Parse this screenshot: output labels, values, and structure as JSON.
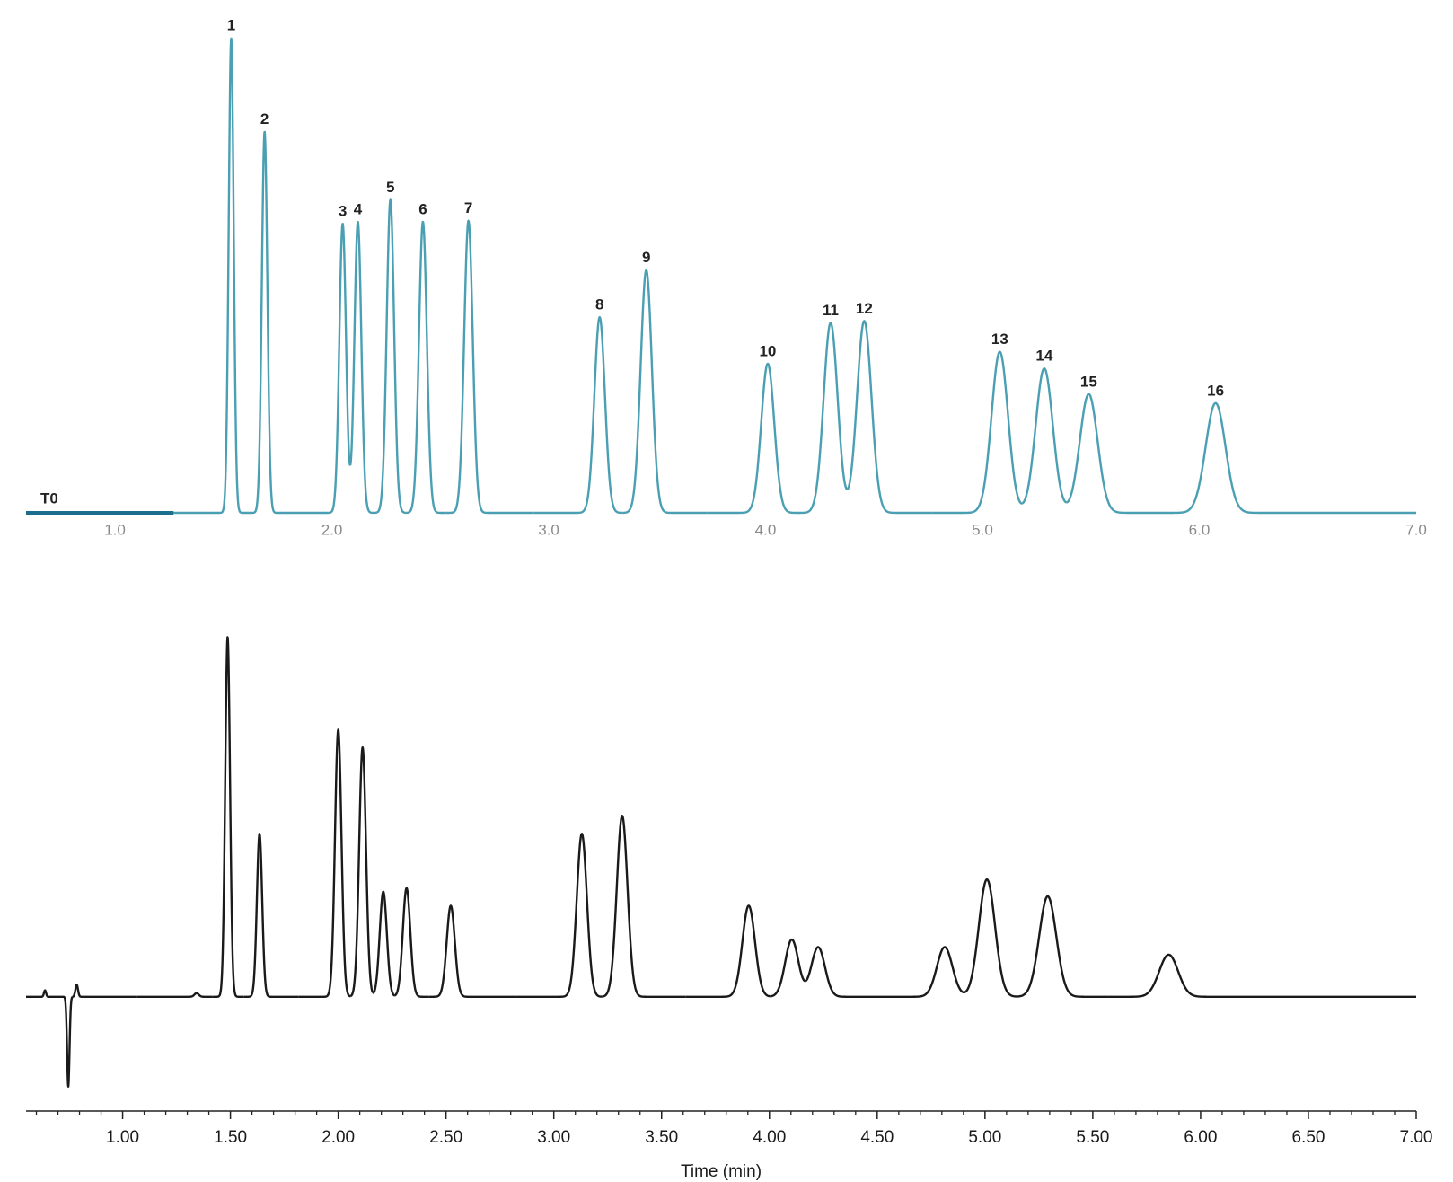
{
  "chart_data": [
    {
      "type": "chromatogram",
      "x": [
        1.536,
        1.69,
        2.05,
        2.12,
        2.27,
        2.42,
        2.63,
        3.235,
        3.45,
        4.01,
        4.3,
        4.455,
        5.08,
        5.285,
        5.49,
        6.075
      ],
      "values": [
        100,
        80.3,
        60.9,
        61.3,
        65.9,
        61.3,
        61.5,
        41.2,
        51.1,
        31.4,
        40.0,
        40.4,
        33.9,
        30.4,
        25.0,
        23.1
      ],
      "peak_labels": [
        "1",
        "2",
        "3",
        "4",
        "5",
        "6",
        "7",
        "8",
        "9",
        "10",
        "11",
        "12",
        "13",
        "14",
        "15",
        "16"
      ],
      "color": "#4a9fb3",
      "xlim": [
        0.59,
        7.0
      ],
      "ylim": [
        0,
        104
      ],
      "xticks": [
        {
          "value": 1,
          "label": "1.0"
        },
        {
          "value": 2,
          "label": "2.0"
        },
        {
          "value": 3,
          "label": "3.0"
        },
        {
          "value": 4,
          "label": "4.0"
        },
        {
          "value": 5,
          "label": "5.0"
        },
        {
          "value": 6,
          "label": "6.0"
        },
        {
          "value": 7,
          "label": "7.0"
        }
      ],
      "tick_label_color": "#8a8a8a",
      "axis_line": false,
      "annotation": {
        "text": "T0",
        "xrange": [
          0.59,
          1.27
        ],
        "color": "#1b6f8c"
      }
    },
    {
      "type": "chromatogram",
      "x": [
        0.64,
        0.748,
        0.787,
        1.343,
        1.487,
        1.635,
        2.0,
        2.113,
        2.209,
        2.317,
        2.522,
        3.13,
        3.317,
        3.904,
        4.104,
        4.226,
        4.813,
        5.009,
        5.291,
        5.852
      ],
      "values": [
        1.8,
        -25,
        3.4,
        1.0,
        100,
        45.3,
        74.2,
        69.3,
        29.2,
        30.2,
        25.3,
        45.3,
        50.3,
        25.3,
        15.9,
        13.8,
        13.8,
        32.6,
        27.9,
        11.7
      ],
      "color": "#1a1a1a",
      "xlim": [
        0.552,
        7.0
      ],
      "ylim": [
        -29,
        104
      ],
      "xticks": [
        {
          "value": 1,
          "label": "1.00"
        },
        {
          "value": 1.5,
          "label": "1.50"
        },
        {
          "value": 2,
          "label": "2.00"
        },
        {
          "value": 2.5,
          "label": "2.50"
        },
        {
          "value": 3,
          "label": "3.00"
        },
        {
          "value": 3.5,
          "label": "3.50"
        },
        {
          "value": 4,
          "label": "4.00"
        },
        {
          "value": 4.5,
          "label": "4.50"
        },
        {
          "value": 5,
          "label": "5.00"
        },
        {
          "value": 5.5,
          "label": "5.50"
        },
        {
          "value": 6,
          "label": "6.00"
        },
        {
          "value": 6.5,
          "label": "6.50"
        },
        {
          "value": 7,
          "label": "7.00"
        }
      ],
      "xminor_ticks": [
        0.6,
        0.7,
        0.8,
        0.9,
        1.1,
        1.2,
        1.3,
        1.4,
        1.6,
        1.7,
        1.8,
        1.9,
        2.1,
        2.2,
        2.3,
        2.4,
        2.6,
        2.7,
        2.8,
        2.9,
        3.1,
        3.2,
        3.3,
        3.4,
        3.6,
        3.7,
        3.8,
        3.9,
        4.1,
        4.2,
        4.3,
        4.4,
        4.6,
        4.7,
        4.8,
        4.9,
        5.1,
        5.2,
        5.3,
        5.4,
        5.6,
        5.7,
        5.8,
        5.9,
        6.1,
        6.2,
        6.3,
        6.4,
        6.6,
        6.7,
        6.8,
        6.9
      ],
      "tick_label_color": "#1a1a1a",
      "axis_line": true,
      "x_label": "Time (min)"
    }
  ]
}
